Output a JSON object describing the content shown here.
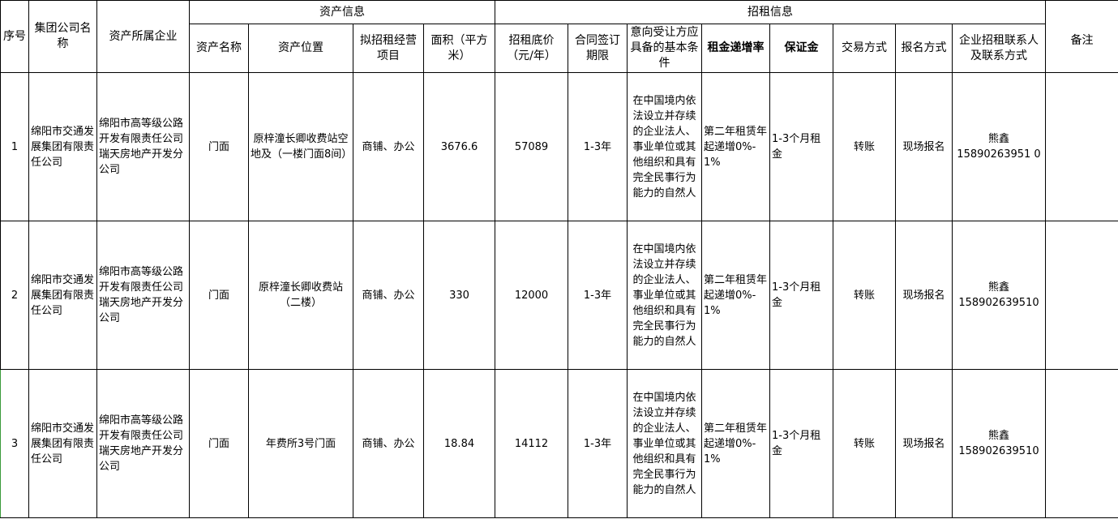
{
  "headers": {
    "seq": "序号",
    "group": "集团公司名称",
    "enterprise": "资产所属企业",
    "asset_info": "资产信息",
    "lease_info": "招租信息",
    "remark": "备注",
    "asset_name": "资产名称",
    "location": "资产位置",
    "business": "拟招租经营项目",
    "area": "面积（平方米）",
    "price": "招租底价（元/年）",
    "term": "合同签订期限",
    "conditions": "意向受让方应具备的基本条件",
    "increase": "租金递增率",
    "deposit": "保证金",
    "trade": "交易方式",
    "signup": "报名方式",
    "contact": "企业招租联系人及联系方式"
  },
  "rows": [
    {
      "seq": "1",
      "group": "绵阳市交通发展集团有限责任公司",
      "enterprise": "绵阳市高等级公路开发有限责任公司瑞天房地产开发分公司",
      "asset_name": "门面",
      "location": "原梓潼长卿收费站空地及（一楼门面8间）",
      "business": "商铺、办公",
      "area": "3676.6",
      "price": "57089",
      "term": "1-3年",
      "conditions": "在中国境内依法设立并存续的企业法人、事业单位或其他组织和具有完全民事行为能力的自然人",
      "increase": "第二年租赁年起递增0%-1%",
      "deposit": "1-3个月租金",
      "trade": "转账",
      "signup": "现场报名",
      "contact_name": "熊鑫",
      "contact_phone": "15890263951 0",
      "remark": ""
    },
    {
      "seq": "2",
      "group": "绵阳市交通发展集团有限责任公司",
      "enterprise": "绵阳市高等级公路开发有限责任公司瑞天房地产开发分公司",
      "asset_name": "门面",
      "location": "原梓潼长卿收费站（二楼）",
      "business": "商铺、办公",
      "area": "330",
      "price": "12000",
      "term": "1-3年",
      "conditions": "在中国境内依法设立并存续的企业法人、事业单位或其他组织和具有完全民事行为能力的自然人",
      "increase": "第二年租赁年起递增0%-1%",
      "deposit": "1-3个月租金",
      "trade": "转账",
      "signup": "现场报名",
      "contact_name": "熊鑫",
      "contact_phone": "158902639510",
      "remark": ""
    },
    {
      "seq": "3",
      "group": "绵阳市交通发展集团有限责任公司",
      "enterprise": "绵阳市高等级公路开发有限责任公司瑞天房地产开发分公司",
      "asset_name": "门面",
      "location": "年费所3号门面",
      "business": "商铺、办公",
      "area": "18.84",
      "price": "14112",
      "term": "1-3年",
      "conditions": "在中国境内依法设立并存续的企业法人、事业单位或其他组织和具有完全民事行为能力的自然人",
      "increase": "第二年租赁年起递增0%-1%",
      "deposit": "1-3个月租金",
      "trade": "转账",
      "signup": "现场报名",
      "contact_name": "熊鑫",
      "contact_phone": "158902639510",
      "remark": ""
    }
  ]
}
